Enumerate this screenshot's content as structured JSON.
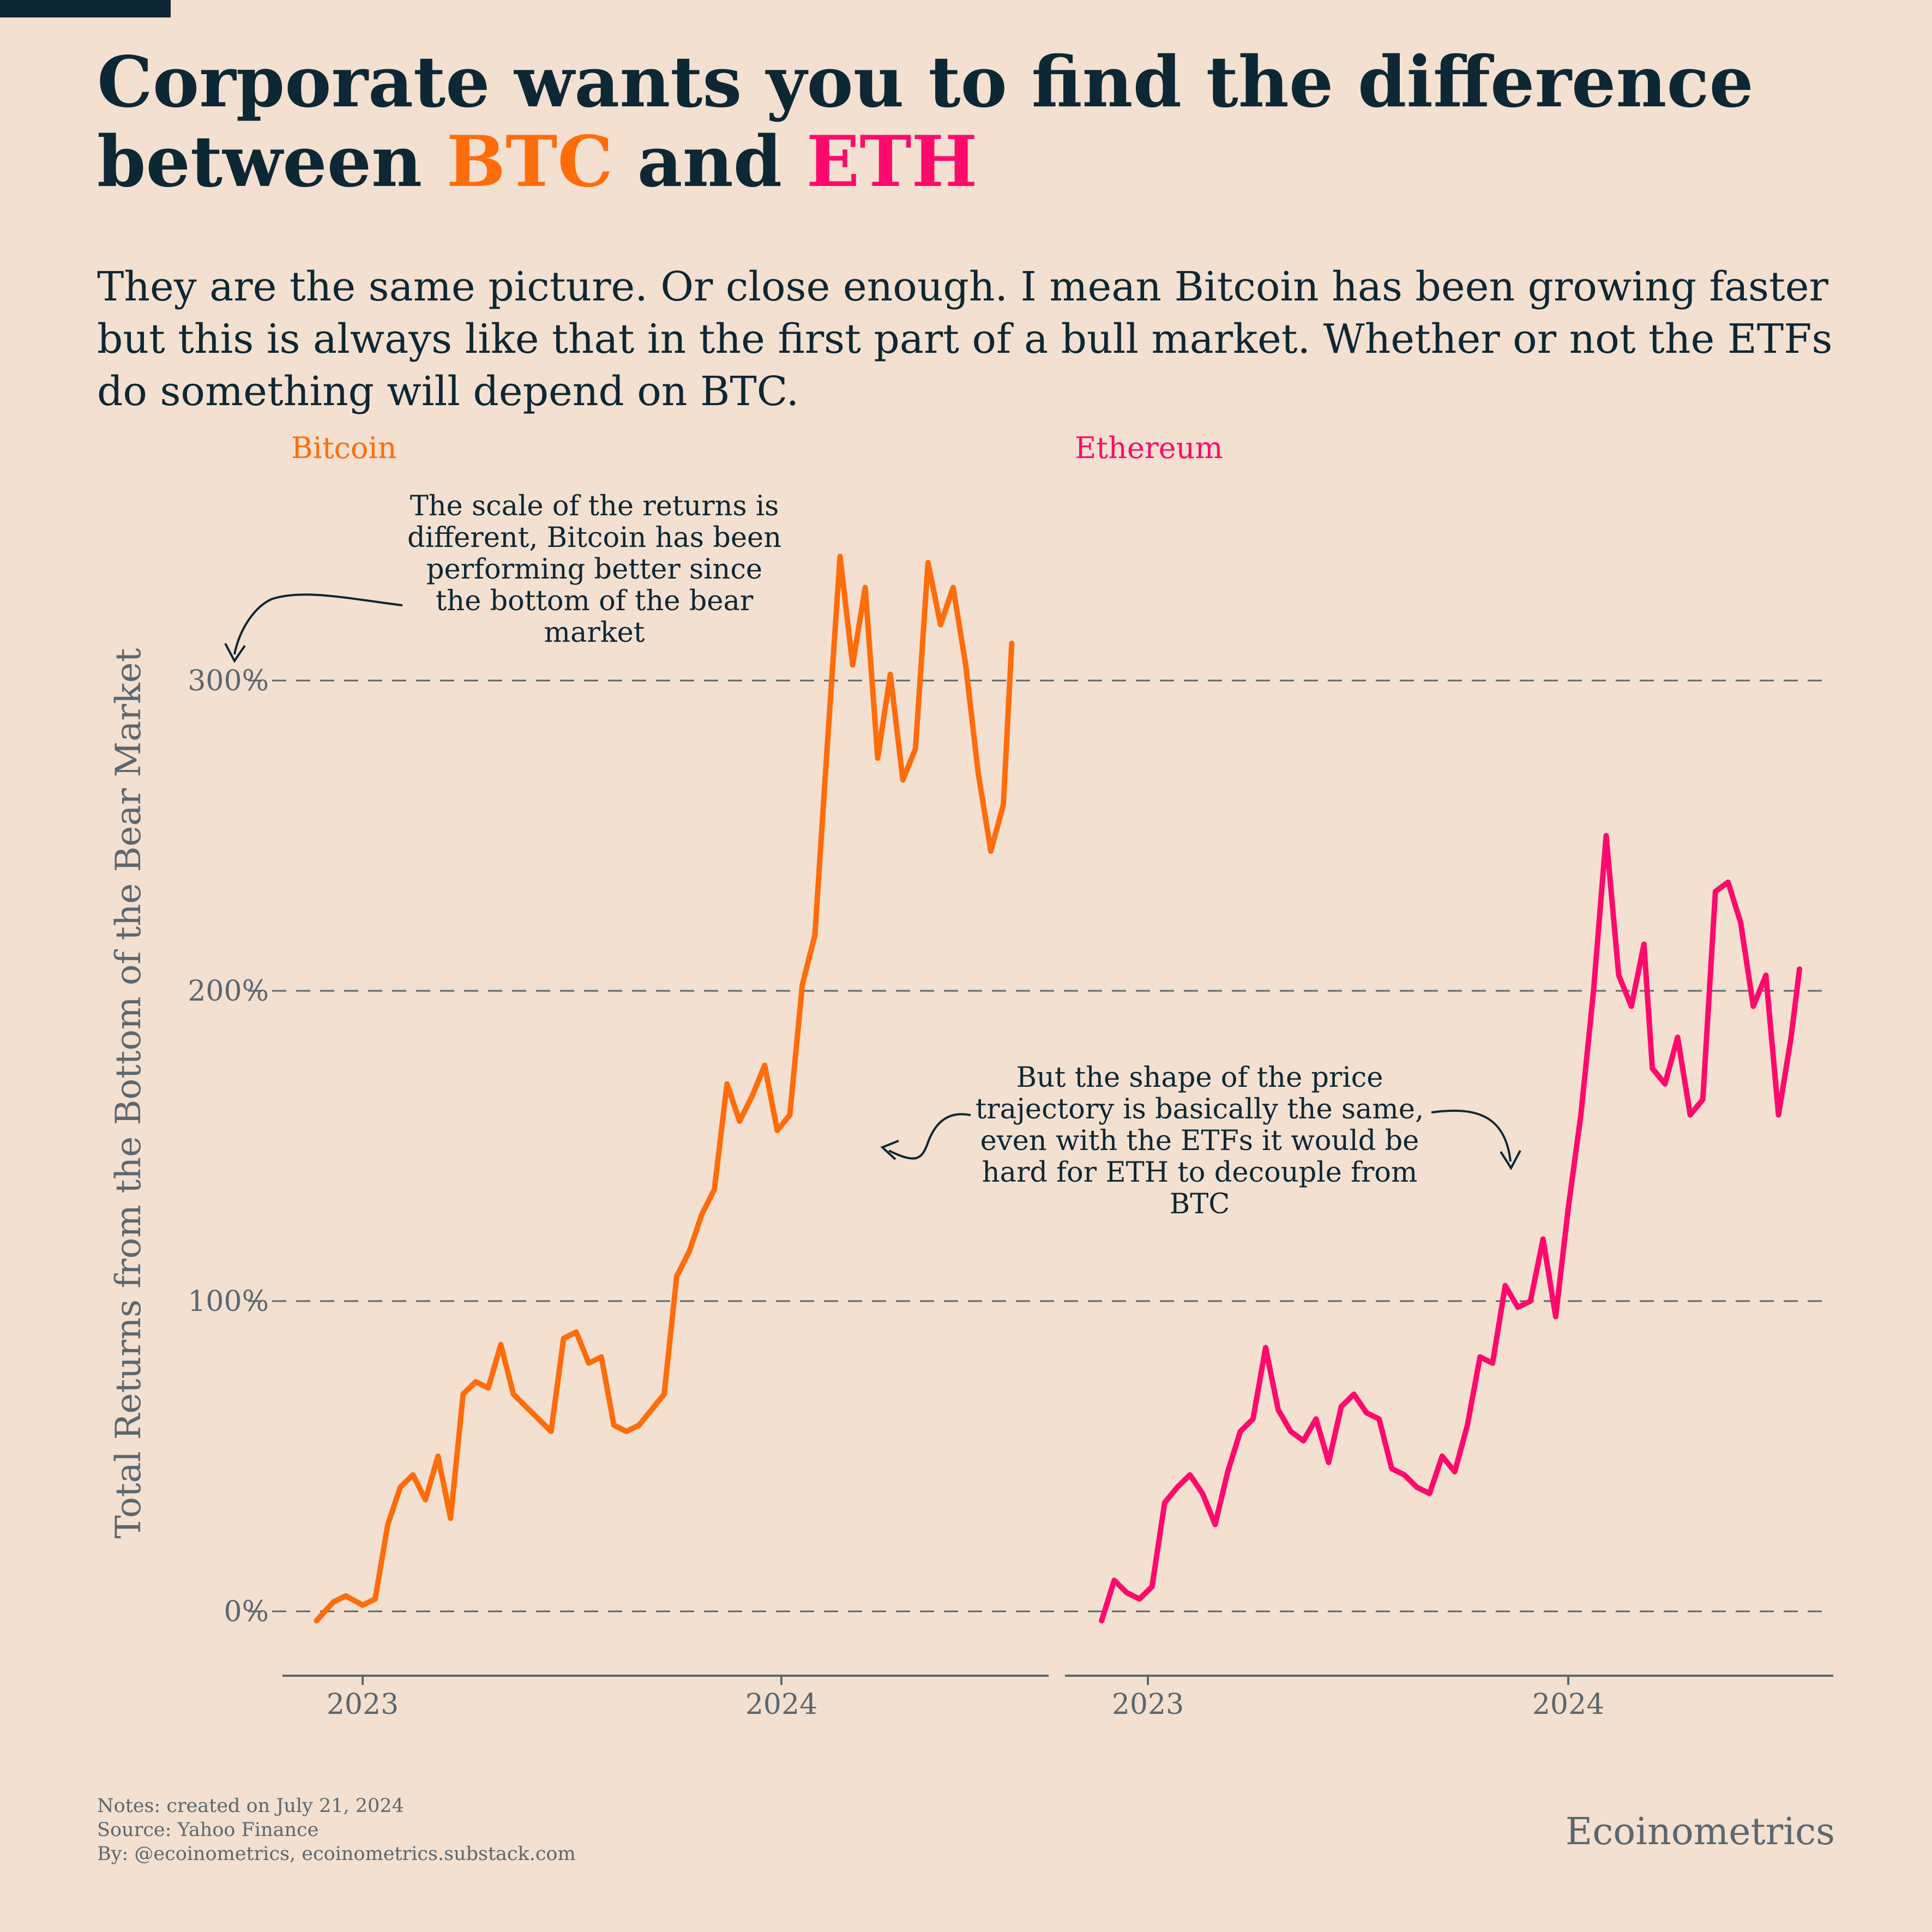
{
  "header": {
    "title_part1": "Corporate wants you to find the difference",
    "title_part2": "between ",
    "title_btc": "BTC",
    "title_and": " and ",
    "title_eth": "ETH",
    "subtitle": "They are the same picture. Or close enough. I mean Bitcoin has been growing faster but this is always like that in the first part of a bull market. Whether or not the ETFs do something will depend on BTC."
  },
  "colors": {
    "btc": "#ff6c0a",
    "eth": "#ff0a6c",
    "text": "#0d2734",
    "muted": "#5a6770",
    "background": "#f3e0d0"
  },
  "annotations": {
    "left": "The scale of the returns is different, Bitcoin has been performing better since the bottom of the bear market",
    "right": "But the shape of the price trajectory is basically the same, even with the ETFs it would be hard for ETH to decouple from BTC"
  },
  "footer": {
    "notes": "Notes: created on July 21, 2024",
    "source": "Source: Yahoo Finance",
    "by": "By: @ecoinometrics, ecoinometrics.substack.com",
    "brand": "Ecoinometrics"
  },
  "chart_data": {
    "type": "line",
    "ylabel": "Total Returns from the Bottom of the Bear Market",
    "ylim": [
      -20,
      360
    ],
    "yticks": [
      0,
      100,
      200,
      300
    ],
    "ytick_labels": [
      "0%",
      "100%",
      "200%",
      "300%"
    ],
    "grid": "horizontal dashed",
    "panels": [
      {
        "name": "Bitcoin",
        "color": "#ff6c0a",
        "xlim": [
          2022.78,
          2024.62
        ],
        "xticks": [
          2023,
          2024
        ],
        "xtick_labels": [
          "2023",
          "2024"
        ],
        "x": [
          2022.89,
          2022.93,
          2022.96,
          2023.0,
          2023.03,
          2023.06,
          2023.09,
          2023.12,
          2023.15,
          2023.18,
          2023.21,
          2023.24,
          2023.27,
          2023.3,
          2023.33,
          2023.36,
          2023.39,
          2023.42,
          2023.45,
          2023.48,
          2023.51,
          2023.54,
          2023.57,
          2023.6,
          2023.63,
          2023.66,
          2023.69,
          2023.72,
          2023.75,
          2023.78,
          2023.81,
          2023.84,
          2023.87,
          2023.9,
          2023.93,
          2023.96,
          2023.99,
          2024.02,
          2024.05,
          2024.08,
          2024.11,
          2024.14,
          2024.17,
          2024.2,
          2024.23,
          2024.26,
          2024.29,
          2024.32,
          2024.35,
          2024.38,
          2024.41,
          2024.44,
          2024.47,
          2024.5,
          2024.53,
          2024.55
        ],
        "values": [
          -3,
          3,
          5,
          2,
          4,
          28,
          40,
          44,
          36,
          50,
          30,
          70,
          74,
          72,
          86,
          70,
          66,
          62,
          58,
          88,
          90,
          80,
          82,
          60,
          58,
          60,
          65,
          70,
          108,
          116,
          128,
          136,
          170,
          158,
          166,
          176,
          155,
          160,
          202,
          218,
          280,
          340,
          305,
          330,
          275,
          302,
          268,
          278,
          338,
          318,
          330,
          305,
          270,
          245,
          260,
          312
        ]
      },
      {
        "name": "Ethereum",
        "color": "#ff0a6c",
        "xlim": [
          2022.78,
          2024.62
        ],
        "xticks": [
          2023,
          2024
        ],
        "xtick_labels": [
          "2023",
          "2024"
        ],
        "x": [
          2022.89,
          2022.92,
          2022.95,
          2022.98,
          2023.01,
          2023.04,
          2023.07,
          2023.1,
          2023.13,
          2023.16,
          2023.19,
          2023.22,
          2023.25,
          2023.28,
          2023.31,
          2023.34,
          2023.37,
          2023.4,
          2023.43,
          2023.46,
          2023.49,
          2023.52,
          2023.55,
          2023.58,
          2023.61,
          2023.64,
          2023.67,
          2023.7,
          2023.73,
          2023.76,
          2023.79,
          2023.82,
          2023.85,
          2023.88,
          2023.91,
          2023.94,
          2023.97,
          2024.0,
          2024.03,
          2024.06,
          2024.09,
          2024.12,
          2024.15,
          2024.18,
          2024.2,
          2024.23,
          2024.26,
          2024.29,
          2024.32,
          2024.35,
          2024.38,
          2024.41,
          2024.44,
          2024.47,
          2024.5,
          2024.53,
          2024.55
        ],
        "values": [
          -3,
          10,
          6,
          4,
          8,
          35,
          40,
          44,
          38,
          28,
          45,
          58,
          62,
          85,
          65,
          58,
          55,
          62,
          48,
          66,
          70,
          64,
          62,
          46,
          44,
          40,
          38,
          50,
          45,
          60,
          82,
          80,
          105,
          98,
          100,
          120,
          95,
          130,
          160,
          200,
          250,
          205,
          195,
          215,
          175,
          170,
          185,
          160,
          165,
          232,
          235,
          222,
          195,
          205,
          160,
          185,
          207
        ]
      }
    ]
  }
}
